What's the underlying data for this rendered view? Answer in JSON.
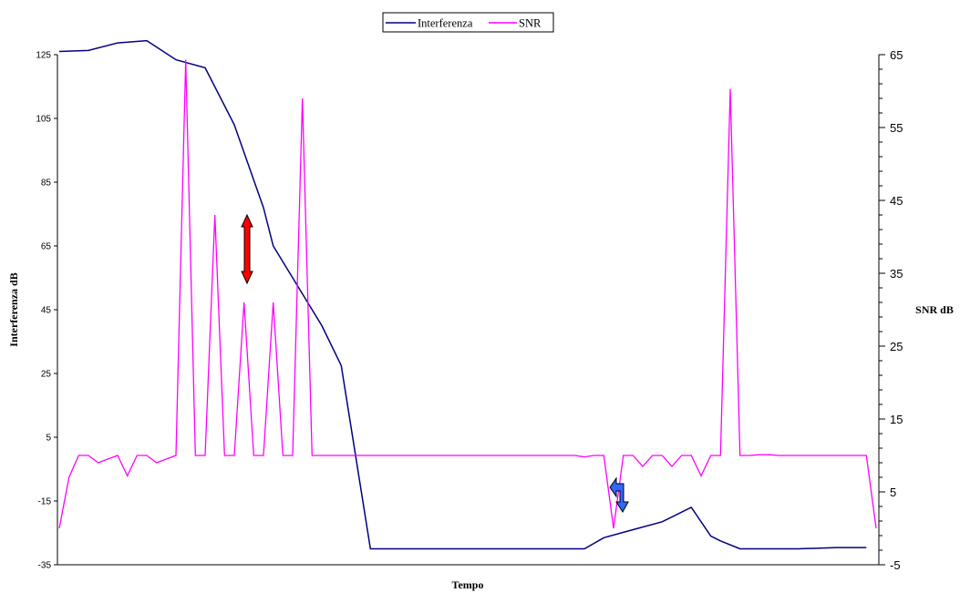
{
  "chart_data": {
    "type": "line",
    "title": "",
    "xlabel": "Tempo",
    "ylabel": "Interferenza dB",
    "y2label": "SNR dB",
    "ylim": [
      -35,
      125
    ],
    "y_ticks": [
      "125",
      "105",
      "85",
      "65",
      "45",
      "25",
      "5",
      "-15",
      "-35"
    ],
    "y2lim": [
      -5,
      65
    ],
    "y2_ticks": [
      "65",
      "55",
      "45",
      "35",
      "25",
      "15",
      "5",
      "-5"
    ],
    "grid": false,
    "legend_position": "top-center",
    "n_points": 85,
    "series": [
      {
        "name": "Interferenza",
        "axis": "left",
        "color": "#000080",
        "points": [
          [
            0,
            126
          ],
          [
            3,
            126.3
          ],
          [
            6,
            128.7
          ],
          [
            9,
            129.4
          ],
          [
            12,
            123.4
          ],
          [
            15,
            120.9
          ],
          [
            18,
            103
          ],
          [
            21,
            77
          ],
          [
            22,
            65
          ],
          [
            24,
            55
          ],
          [
            27,
            40
          ],
          [
            29,
            27.5
          ],
          [
            32,
            -30
          ],
          [
            35,
            -30
          ],
          [
            38,
            -30
          ],
          [
            41,
            -30
          ],
          [
            44,
            -30
          ],
          [
            47,
            -30
          ],
          [
            50,
            -30
          ],
          [
            53,
            -30
          ],
          [
            54,
            -30
          ],
          [
            56,
            -26.5
          ],
          [
            59,
            -24
          ],
          [
            62,
            -21.5
          ],
          [
            65,
            -17
          ],
          [
            67,
            -26
          ],
          [
            68,
            -27.5
          ],
          [
            70,
            -30
          ],
          [
            73,
            -30
          ],
          [
            76,
            -30
          ],
          [
            80,
            -29.6
          ],
          [
            83,
            -29.6
          ]
        ]
      },
      {
        "name": "SNR",
        "axis": "right",
        "color": "#FF00FF",
        "points": [
          [
            0,
            0
          ],
          [
            1,
            7
          ],
          [
            2,
            10
          ],
          [
            3,
            10
          ],
          [
            4,
            9
          ],
          [
            5,
            9.5
          ],
          [
            6,
            10
          ],
          [
            7,
            7.2
          ],
          [
            8,
            10
          ],
          [
            9,
            10
          ],
          [
            10,
            9
          ],
          [
            11,
            9.5
          ],
          [
            12,
            10
          ],
          [
            13,
            64.3
          ],
          [
            14,
            10
          ],
          [
            15,
            10
          ],
          [
            16,
            43
          ],
          [
            17,
            10
          ],
          [
            18,
            10
          ],
          [
            19,
            31
          ],
          [
            20,
            10
          ],
          [
            21,
            10
          ],
          [
            22,
            31
          ],
          [
            23,
            10
          ],
          [
            24,
            10
          ],
          [
            25,
            59
          ],
          [
            26,
            10
          ],
          [
            27,
            10
          ],
          [
            28,
            10
          ],
          [
            29,
            10
          ],
          [
            30,
            10
          ],
          [
            31,
            10
          ],
          [
            32,
            10
          ],
          [
            33,
            10
          ],
          [
            34,
            10
          ],
          [
            35,
            10
          ],
          [
            36,
            10
          ],
          [
            37,
            10
          ],
          [
            38,
            10
          ],
          [
            39,
            10
          ],
          [
            40,
            10
          ],
          [
            41,
            10
          ],
          [
            42,
            10
          ],
          [
            43,
            10
          ],
          [
            44,
            10
          ],
          [
            45,
            10
          ],
          [
            46,
            10
          ],
          [
            47,
            10
          ],
          [
            48,
            10
          ],
          [
            49,
            10
          ],
          [
            50,
            10
          ],
          [
            51,
            10
          ],
          [
            52,
            10
          ],
          [
            53,
            10
          ],
          [
            54,
            9.8
          ],
          [
            55,
            10
          ],
          [
            56,
            10
          ],
          [
            57,
            0
          ],
          [
            58,
            10
          ],
          [
            59,
            10
          ],
          [
            60,
            8.5
          ],
          [
            61,
            10
          ],
          [
            62,
            10
          ],
          [
            63,
            8.5
          ],
          [
            64,
            10
          ],
          [
            65,
            10
          ],
          [
            66,
            7.2
          ],
          [
            67,
            10
          ],
          [
            68,
            10
          ],
          [
            69,
            60.3
          ],
          [
            70,
            10
          ],
          [
            71,
            10
          ],
          [
            72,
            10.1
          ],
          [
            73,
            10.1
          ],
          [
            74,
            10
          ],
          [
            75,
            10
          ],
          [
            76,
            10
          ],
          [
            77,
            10
          ],
          [
            78,
            10
          ],
          [
            79,
            10
          ],
          [
            80,
            10
          ],
          [
            81,
            10
          ],
          [
            82,
            10
          ],
          [
            83,
            10
          ],
          [
            84,
            0
          ]
        ]
      }
    ]
  }
}
